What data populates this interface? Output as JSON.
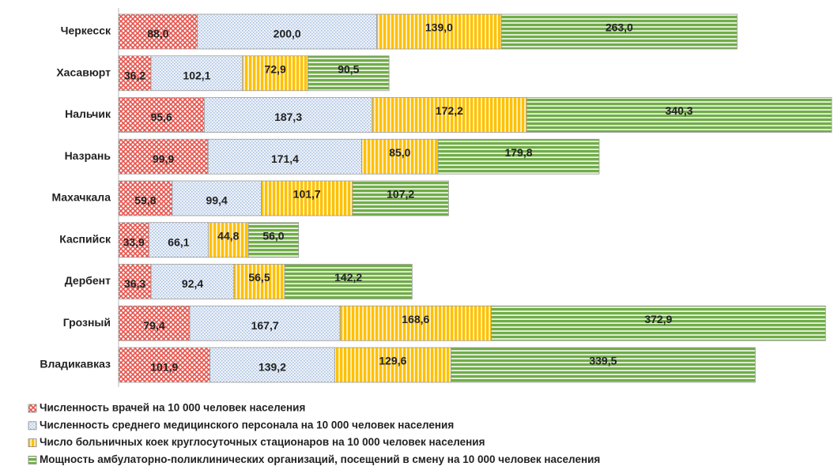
{
  "chart_data": {
    "type": "stacked_barh",
    "categories": [
      "Черкесск",
      "Хасавюрт",
      "Нальчик",
      "Назрань",
      "Махачкала",
      "Каспийск",
      "Дербент",
      "Грозный",
      "Владикавказ"
    ],
    "series": [
      {
        "name": "Численность врачей на 10 000 человек населения",
        "color": "#e8524a",
        "hatch": "cross",
        "values": [
          88.0,
          36.2,
          95.6,
          99.9,
          59.8,
          33.9,
          36.3,
          79.4,
          101.9
        ],
        "value_labels": [
          "88,0",
          "36,2",
          "95,6",
          "99,9",
          "59,8",
          "33,9",
          "36,3",
          "79,4",
          "101,9"
        ]
      },
      {
        "name": "Численность среднего медицинского персонала на 10 000 человек населения",
        "color": "#a9c0e0",
        "hatch": "dots",
        "values": [
          200.0,
          102.1,
          187.3,
          171.4,
          99.4,
          66.1,
          92.4,
          167.7,
          139.2
        ],
        "value_labels": [
          "200,0",
          "102,1",
          "187,3",
          "171,4",
          "99,4",
          "66,1",
          "92,4",
          "167,7",
          "139,2"
        ]
      },
      {
        "name": "Число больничных коек круглосуточных стационаров на 10 000 человек населения",
        "color": "#ffc000",
        "hatch": "vertical",
        "values": [
          139.0,
          72.9,
          172.2,
          85.0,
          101.7,
          44.8,
          56.5,
          168.6,
          129.6
        ],
        "value_labels": [
          "139,0",
          "72,9",
          "172,2",
          "85,0",
          "101,7",
          "44,8",
          "56,5",
          "168,6",
          "129,6"
        ]
      },
      {
        "name": "Мощность амбулаторно-поликлинических организаций, посещений в смену на 10 000 человек населения",
        "color": "#70ad47",
        "hatch": "horizontal",
        "values": [
          263.0,
          90.5,
          340.3,
          179.8,
          107.2,
          56.0,
          142.2,
          372.9,
          339.5
        ],
        "value_labels": [
          "263,0",
          "90,5",
          "340,3",
          "179,8",
          "107,2",
          "56,0",
          "142,2",
          "372,9",
          "339,5"
        ]
      }
    ]
  }
}
